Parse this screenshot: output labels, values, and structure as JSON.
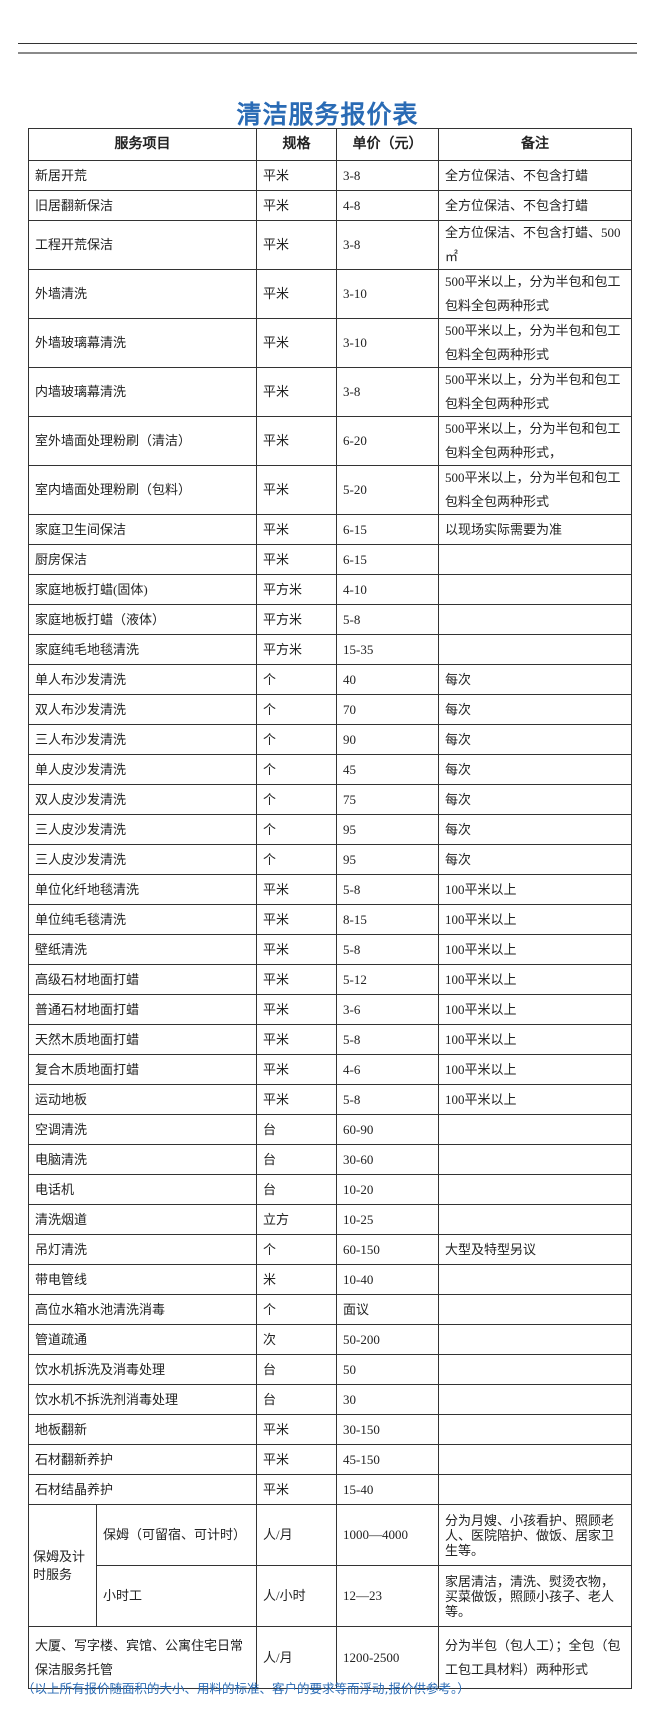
{
  "title": "清洁服务报价表",
  "headers": {
    "item": "服务项目",
    "unit": "规格",
    "price": "单价（元）",
    "note": "备注"
  },
  "rows": [
    {
      "item": "新居开荒",
      "unit": "平米",
      "price": "3-8",
      "note": "全方位保洁、不包含打蜡"
    },
    {
      "item": "旧居翻新保洁",
      "unit": "平米",
      "price": "4-8",
      "note": "全方位保洁、不包含打蜡"
    },
    {
      "item": "工程开荒保洁",
      "unit": "平米",
      "price": "3-8",
      "note": "全方位保洁、不包含打蜡、500㎡"
    },
    {
      "item": "外墙清洗",
      "unit": "平米",
      "price": "3-10",
      "note": "500平米以上，分为半包和包工包料全包两种形式"
    },
    {
      "item": "外墙玻璃幕清洗",
      "unit": "平米",
      "price": "3-10",
      "note": "500平米以上，分为半包和包工包料全包两种形式"
    },
    {
      "item": "内墙玻璃幕清洗",
      "unit": "平米",
      "price": "3-8",
      "note": "500平米以上，分为半包和包工包料全包两种形式"
    },
    {
      "item": "室外墙面处理粉刷（清洁）",
      "unit": "平米",
      "price": "6-20",
      "note": "500平米以上，分为半包和包工包料全包两种形式，"
    },
    {
      "item": "室内墙面处理粉刷（包料）",
      "unit": "平米",
      "price": "5-20",
      "note": "500平米以上，分为半包和包工包料全包两种形式"
    },
    {
      "item": "家庭卫生间保洁",
      "unit": "平米",
      "price": "6-15",
      "note": "以现场实际需要为准"
    },
    {
      "item": "厨房保洁",
      "unit": "平米",
      "price": "6-15",
      "note": ""
    },
    {
      "item": "家庭地板打蜡(固体)",
      "unit": "平方米",
      "price": "4-10",
      "note": ""
    },
    {
      "item": "家庭地板打蜡（液体）",
      "unit": "平方米",
      "price": "5-8",
      "note": ""
    },
    {
      "item": "家庭纯毛地毯清洗",
      "unit": "平方米",
      "price": "15-35",
      "note": ""
    },
    {
      "item": "单人布沙发清洗",
      "unit": "个",
      "price": "40",
      "note": "每次"
    },
    {
      "item": "双人布沙发清洗",
      "unit": "个",
      "price": "70",
      "note": "每次"
    },
    {
      "item": "三人布沙发清洗",
      "unit": "个",
      "price": "90",
      "note": "每次"
    },
    {
      "item": "单人皮沙发清洗",
      "unit": "个",
      "price": "45",
      "note": "每次"
    },
    {
      "item": "双人皮沙发清洗",
      "unit": "个",
      "price": "75",
      "note": "每次"
    },
    {
      "item": "三人皮沙发清洗",
      "unit": "个",
      "price": "95",
      "note": "每次"
    },
    {
      "item": "三人皮沙发清洗",
      "unit": "个",
      "price": "95",
      "note": "每次"
    },
    {
      "item": "单位化纤地毯清洗",
      "unit": "平米",
      "price": "5-8",
      "note": "100平米以上"
    },
    {
      "item": "单位纯毛毯清洗",
      "unit": "平米",
      "price": "8-15",
      "note": "100平米以上"
    },
    {
      "item": "壁纸清洗",
      "unit": "平米",
      "price": "5-8",
      "note": "100平米以上"
    },
    {
      "item": "高级石材地面打蜡",
      "unit": "平米",
      "price": "5-12",
      "note": "100平米以上"
    },
    {
      "item": "普通石材地面打蜡",
      "unit": "平米",
      "price": "3-6",
      "note": "100平米以上"
    },
    {
      "item": "天然木质地面打蜡",
      "unit": "平米",
      "price": "5-8",
      "note": "100平米以上"
    },
    {
      "item": "复合木质地面打蜡",
      "unit": "平米",
      "price": "4-6",
      "note": "100平米以上"
    },
    {
      "item": "运动地板",
      "unit": "平米",
      "price": "5-8",
      "note": "100平米以上"
    },
    {
      "item": "空调清洗",
      "unit": "台",
      "price": "60-90",
      "note": ""
    },
    {
      "item": "电脑清洗",
      "unit": "台",
      "price": "30-60",
      "note": ""
    },
    {
      "item": "电话机",
      "unit": "台",
      "price": "10-20",
      "note": ""
    },
    {
      "item": "清洗烟道",
      "unit": "立方",
      "price": "10-25",
      "note": ""
    },
    {
      "item": "吊灯清洗",
      "unit": "个",
      "price": "60-150",
      "note": "大型及特型另议"
    },
    {
      "item": "带电管线",
      "unit": "米",
      "price": "10-40",
      "note": ""
    },
    {
      "item": "高位水箱水池清洗消毒",
      "unit": "个",
      "price": "面议",
      "note": ""
    },
    {
      "item": "管道疏通",
      "unit": "次",
      "price": "50-200",
      "note": ""
    },
    {
      "item": "饮水机拆洗及消毒处理",
      "unit": "台",
      "price": "50",
      "note": ""
    },
    {
      "item": "饮水机不拆洗剂消毒处理",
      "unit": "台",
      "price": "30",
      "note": ""
    },
    {
      "item": "地板翻新",
      "unit": "平米",
      "price": "30-150",
      "note": ""
    },
    {
      "item": "石材翻新养护",
      "unit": "平米",
      "price": "45-150",
      "note": ""
    },
    {
      "item": "石材结晶养护",
      "unit": "平米",
      "price": "15-40",
      "note": ""
    }
  ],
  "nanny_group": {
    "label": "保姆及计时服务",
    "rows": [
      {
        "item": "保姆（可留宿、可计时）",
        "unit": "人/月",
        "price": "1000—4000",
        "note": "分为月嫂、小孩看护、照顾老人、医院陪护、做饭、居家卫生等。"
      },
      {
        "item": "小时工",
        "unit": "人/小时",
        "price": "12—23",
        "note": "家居清洁，清洗、熨烫衣物，买菜做饭，照顾小孩子、老人等。"
      }
    ]
  },
  "last_row": {
    "item": "大厦、写字楼、宾馆、公寓住宅日常保洁服务托管",
    "unit": "人/月",
    "price": "1200-2500",
    "note": "分为半包（包人工）；全包（包工包工具材料）两种形式"
  },
  "footer": "（以上所有报价随面积的大小、用料的标准、客户的要求等而浮动,报价供参考。）",
  "colors": {
    "title": "#2a6bb5",
    "footer": "#2a6bb5"
  }
}
